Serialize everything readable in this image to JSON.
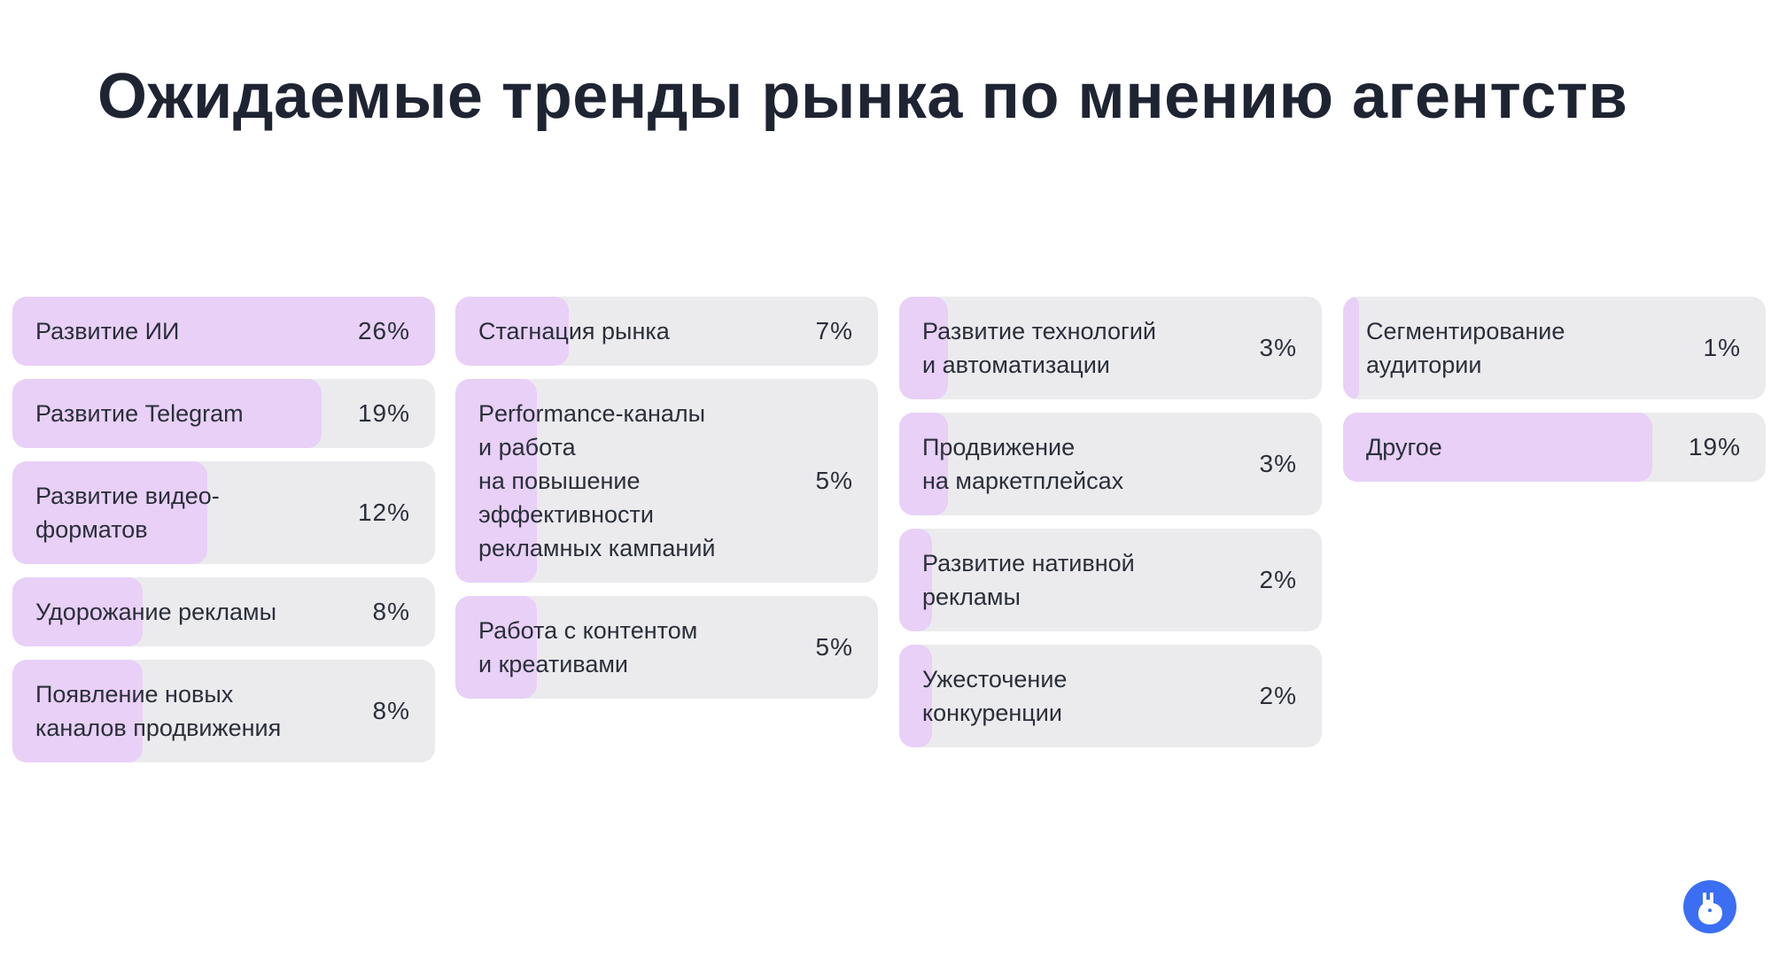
{
  "title": "Ожидаемые тренды рынка по мнению агентств",
  "colors": {
    "card_bg": "#ebebee",
    "fill": "#e8d0f7",
    "text": "#2b2f3a",
    "logo": "#3b6ef2"
  },
  "logo_icon": "llama-logo-icon",
  "chart_data": {
    "type": "bar",
    "columns": [
      [
        {
          "label": "Развитие ИИ",
          "value": 26,
          "display": "26%"
        },
        {
          "label": "Развитие Telegram",
          "value": 19,
          "display": "19%"
        },
        {
          "label": "Развитие видео-\nформатов",
          "value": 12,
          "display": "12%"
        },
        {
          "label": "Удорожание рекламы",
          "value": 8,
          "display": "8%"
        },
        {
          "label": "Появление новых\nканалов продвижения",
          "value": 8,
          "display": "8%"
        }
      ],
      [
        {
          "label": "Стагнация рынка",
          "value": 7,
          "display": "7%"
        },
        {
          "label": "Performance-каналы\nи работа\nна повышение\nэффективности\nрекламных кампаний",
          "value": 5,
          "display": "5%"
        },
        {
          "label": "Работа с контентом\nи креативами",
          "value": 5,
          "display": "5%"
        }
      ],
      [
        {
          "label": "Развитие технологий\nи автоматизации",
          "value": 3,
          "display": "3%"
        },
        {
          "label": "Продвижение\nна маркетплейсах",
          "value": 3,
          "display": "3%"
        },
        {
          "label": "Развитие нативной\nрекламы",
          "value": 2,
          "display": "2%"
        },
        {
          "label": "Ужесточение\nконкуренции",
          "value": 2,
          "display": "2%"
        }
      ],
      [
        {
          "label": "Сегментирование\nаудитории",
          "value": 1,
          "display": "1%"
        },
        {
          "label": "Другое",
          "value": 19,
          "display": "19%"
        }
      ]
    ]
  }
}
